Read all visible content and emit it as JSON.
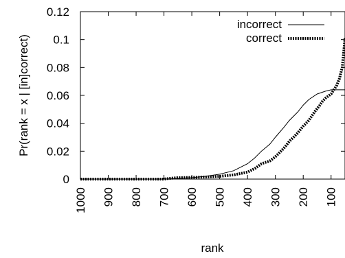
{
  "chart_data": {
    "type": "line",
    "xlabel": "rank",
    "ylabel": "Pr(rank = x | [in]correct)",
    "xlim": [
      1000,
      50
    ],
    "ylim": [
      0,
      0.12
    ],
    "x_reversed": true,
    "x_ticks": [
      1000,
      900,
      800,
      700,
      600,
      500,
      400,
      300,
      200,
      100
    ],
    "x_tick_labels": [
      "1000",
      "900",
      "800",
      "700",
      "600",
      "500",
      "400",
      "300",
      "200",
      "100"
    ],
    "y_ticks": [
      0,
      0.02,
      0.04,
      0.06,
      0.08,
      0.1,
      0.12
    ],
    "y_tick_labels": [
      "0",
      "0.02",
      "0.04",
      "0.06",
      "0.08",
      "0.1",
      "0.12"
    ],
    "grid": false,
    "legend_position": "top-right",
    "series": [
      {
        "name": "incorrect",
        "style": "solid",
        "color": "#000000",
        "x": [
          1000,
          900,
          800,
          700,
          650,
          600,
          550,
          500,
          450,
          400,
          375,
          350,
          320,
          300,
          270,
          250,
          220,
          200,
          180,
          150,
          120,
          100,
          80,
          60,
          50
        ],
        "y": [
          0,
          0,
          0,
          0,
          0.0005,
          0.001,
          0.002,
          0.0035,
          0.006,
          0.011,
          0.015,
          0.02,
          0.025,
          0.03,
          0.037,
          0.042,
          0.048,
          0.053,
          0.057,
          0.061,
          0.063,
          0.064,
          0.064,
          0.064,
          0.064
        ]
      },
      {
        "name": "correct",
        "style": "dotted",
        "color": "#000000",
        "x": [
          1000,
          900,
          800,
          700,
          680,
          650,
          600,
          550,
          500,
          450,
          400,
          370,
          350,
          320,
          300,
          270,
          250,
          220,
          200,
          180,
          160,
          140,
          130,
          120,
          100,
          80,
          70,
          60,
          55,
          50
        ],
        "y": [
          0,
          0,
          0,
          0,
          0.0005,
          0.001,
          0.0012,
          0.0015,
          0.002,
          0.003,
          0.005,
          0.008,
          0.011,
          0.013,
          0.016,
          0.022,
          0.027,
          0.033,
          0.038,
          0.042,
          0.048,
          0.053,
          0.056,
          0.058,
          0.061,
          0.067,
          0.072,
          0.08,
          0.09,
          0.101
        ]
      }
    ]
  }
}
